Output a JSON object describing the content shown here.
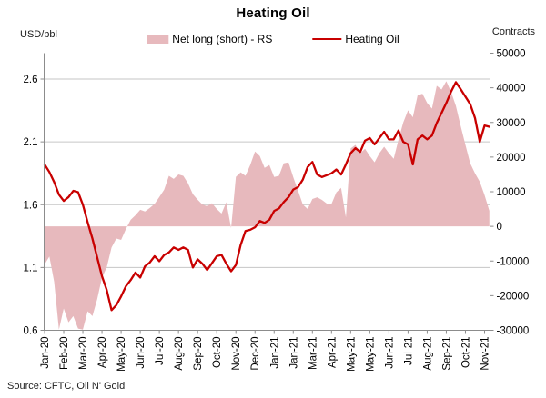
{
  "title": "Heating Oil",
  "left_axis_unit": "USD/bbl",
  "right_axis_unit": "Contracts",
  "source": "Source: CFTC, Oil N' Gold",
  "legend": [
    {
      "label": "Net long (short) - RS",
      "type": "area",
      "color": "#E7B9BD"
    },
    {
      "label": "Heating Oil",
      "type": "line",
      "color": "#C80000"
    }
  ],
  "colors": {
    "area_fill": "#E7B9BD",
    "line_stroke": "#C80000",
    "gridline": "#C6C6C6",
    "axis": "#8C8C8C",
    "text": "#000000"
  },
  "chart_data": {
    "type": "line+area",
    "frequency": "weekly",
    "x_tick_labels": [
      "Jan-20",
      "Feb-20",
      "Mar-20",
      "Apr-20",
      "May-20",
      "Jun-20",
      "Jul-20",
      "Aug-20",
      "Sep-20",
      "Oct-20",
      "Nov-20",
      "Dec-20",
      "Jan-21",
      "Jan-21",
      "Mar-21",
      "Apr-21",
      "May-21",
      "May-21",
      "Jun-21",
      "Jul-21",
      "Aug-21",
      "Sep-21",
      "Oct-21",
      "Nov-21"
    ],
    "points_per_tick": 4,
    "left_axis": {
      "title": "USD/bbl",
      "ticks": [
        2.6,
        2.1,
        1.6,
        1.1,
        0.6
      ],
      "range": [
        0.6,
        2.6
      ],
      "gridlines": true
    },
    "right_axis": {
      "title": "Contracts",
      "ticks": [
        50000,
        40000,
        30000,
        20000,
        10000,
        0,
        -10000,
        -20000,
        -30000
      ],
      "range": [
        -30000,
        50000
      ]
    },
    "legend_position": "top",
    "series": [
      {
        "name": "Net long (short) - RS",
        "type": "area",
        "axis": "right",
        "color": "#E7B9BD",
        "values": [
          -11000,
          -8700,
          -16000,
          -29800,
          -23700,
          -27700,
          -25900,
          -29500,
          -29800,
          -24500,
          -25900,
          -21000,
          -14800,
          -11800,
          -6100,
          -3500,
          -3900,
          -800,
          1900,
          3200,
          4800,
          4300,
          5300,
          6500,
          8500,
          10600,
          14600,
          13700,
          15000,
          14600,
          12400,
          9300,
          7700,
          6300,
          5800,
          6700,
          5000,
          3700,
          7000,
          -500,
          14300,
          15600,
          14600,
          17700,
          21600,
          20300,
          16900,
          17700,
          14250,
          14600,
          18200,
          18500,
          14200,
          10300,
          6300,
          5000,
          7900,
          8400,
          7650,
          6600,
          6500,
          9800,
          11100,
          2600,
          22500,
          23500,
          21100,
          22400,
          20300,
          18500,
          21100,
          23000,
          21100,
          19500,
          25000,
          30000,
          33500,
          31500,
          37800,
          38300,
          35600,
          34000,
          40600,
          39500,
          41900,
          38800,
          34800,
          29000,
          23500,
          18200,
          15300,
          12900,
          9000,
          4500
        ]
      },
      {
        "name": "Heating Oil",
        "type": "line",
        "axis": "left",
        "color": "#C80000",
        "values": [
          1.92,
          1.86,
          1.78,
          1.68,
          1.63,
          1.66,
          1.71,
          1.7,
          1.6,
          1.46,
          1.33,
          1.18,
          1.03,
          0.92,
          0.76,
          0.8,
          0.87,
          0.95,
          1.0,
          1.06,
          1.02,
          1.11,
          1.14,
          1.19,
          1.15,
          1.2,
          1.22,
          1.26,
          1.24,
          1.26,
          1.24,
          1.1,
          1.165,
          1.13,
          1.08,
          1.135,
          1.19,
          1.2,
          1.13,
          1.07,
          1.12,
          1.28,
          1.39,
          1.4,
          1.42,
          1.47,
          1.455,
          1.48,
          1.55,
          1.57,
          1.62,
          1.66,
          1.72,
          1.74,
          1.8,
          1.9,
          1.94,
          1.84,
          1.82,
          1.835,
          1.85,
          1.88,
          1.84,
          1.92,
          2.01,
          2.05,
          2.02,
          2.11,
          2.13,
          2.08,
          2.13,
          2.18,
          2.12,
          2.12,
          2.19,
          2.1,
          2.08,
          1.92,
          2.12,
          2.15,
          2.12,
          2.15,
          2.25,
          2.33,
          2.41,
          2.5,
          2.575,
          2.52,
          2.46,
          2.4,
          2.29,
          2.1,
          2.23,
          2.22
        ]
      }
    ]
  }
}
